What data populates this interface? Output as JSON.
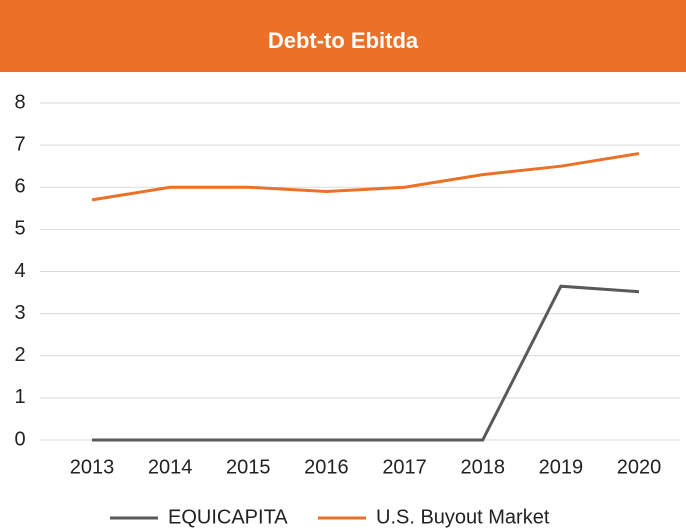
{
  "chart_data": {
    "type": "line",
    "title": "Debt-to Ebitda",
    "categories": [
      "2013",
      "2014",
      "2015",
      "2016",
      "2017",
      "2018",
      "2019",
      "2020"
    ],
    "series": [
      {
        "name": "EQUICAPITA",
        "color": "#595959",
        "values": [
          0,
          0,
          0,
          0,
          0,
          0,
          3.65,
          3.52
        ]
      },
      {
        "name": "U.S. Buyout Market",
        "color": "#eb7128",
        "values": [
          5.7,
          6.0,
          6.0,
          5.9,
          6.0,
          6.3,
          6.5,
          6.8
        ]
      }
    ],
    "ylim": [
      0,
      8
    ],
    "yticks": [
      0,
      1,
      2,
      3,
      4,
      5,
      6,
      7,
      8
    ],
    "grid": true,
    "legend": "bottom",
    "header_color": "#eb7128"
  }
}
